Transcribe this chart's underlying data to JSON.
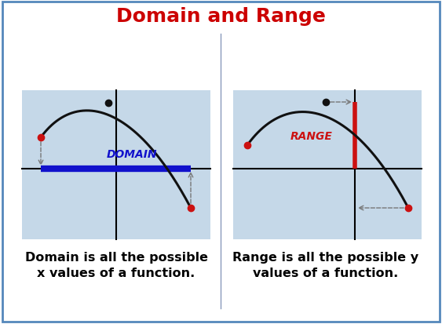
{
  "title": "Domain and Range",
  "title_color": "#cc0000",
  "title_fontsize": 18,
  "bg_color": "#ffffff",
  "panel_bg_color": "#c5d8e8",
  "border_color": "#5588bb",
  "left_caption_line1": "Domain is all the possible",
  "left_caption_line2": "x values of a function.",
  "right_caption_line1": "Range is all the possible y",
  "right_caption_line2": "values of a function.",
  "caption_fontsize": 11.5,
  "domain_label": "DOMAIN",
  "range_label": "RANGE",
  "domain_color": "#1111cc",
  "range_color": "#cc1111",
  "label_fontsize": 9,
  "divider_color": "#8899bb",
  "arrow_color": "#777777",
  "curve_color": "#111111",
  "dot_red": "#cc1111",
  "dot_black": "#111111"
}
